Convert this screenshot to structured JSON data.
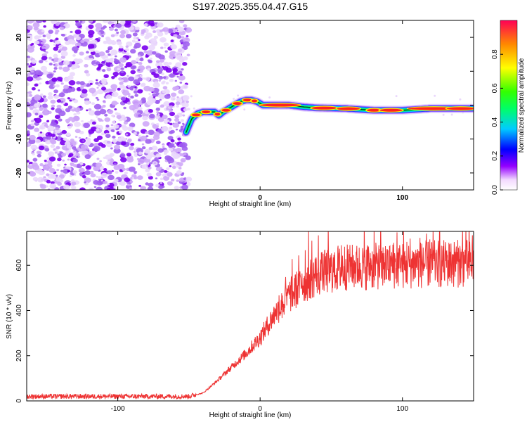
{
  "title": "S197.2025.355.04.47.G15",
  "colors": {
    "snr_line": "#ee3333",
    "axis": "#000000",
    "noise": "#8a2be2"
  },
  "chart_data": [
    {
      "type": "heatmap",
      "name": "spectrogram",
      "xlabel": "Height of straight line (km)",
      "ylabel": "Frequency (Hz)",
      "xlim": [
        -164,
        150
      ],
      "ylim": [
        -25,
        25
      ],
      "x_ticks": [
        -100,
        0,
        100
      ],
      "x_tick_labels": [
        "-100",
        "0",
        "100"
      ],
      "y_ticks": [
        -20,
        -10,
        0,
        10,
        20
      ],
      "y_tick_labels": [
        "-20",
        "-10",
        "0",
        "10",
        "20"
      ],
      "noise_region_x": [
        -164,
        -50
      ],
      "signal_track": [
        {
          "x": -52,
          "y": -8
        },
        {
          "x": -48,
          "y": -4
        },
        {
          "x": -44,
          "y": -2.5
        },
        {
          "x": -40,
          "y": -2
        },
        {
          "x": -36,
          "y": -2
        },
        {
          "x": -32,
          "y": -2
        },
        {
          "x": -29,
          "y": -3
        },
        {
          "x": -26,
          "y": -2
        },
        {
          "x": -22,
          "y": -1
        },
        {
          "x": -18,
          "y": 0
        },
        {
          "x": -14,
          "y": 1
        },
        {
          "x": -10,
          "y": 1.5
        },
        {
          "x": -6,
          "y": 1.5
        },
        {
          "x": -2,
          "y": 1
        },
        {
          "x": 2,
          "y": 0
        },
        {
          "x": 10,
          "y": 0
        },
        {
          "x": 20,
          "y": 0
        },
        {
          "x": 30,
          "y": -0.5
        },
        {
          "x": 40,
          "y": -0.8
        },
        {
          "x": 60,
          "y": -1
        },
        {
          "x": 80,
          "y": -1.5
        },
        {
          "x": 100,
          "y": -1.5
        },
        {
          "x": 120,
          "y": -1
        },
        {
          "x": 150,
          "y": -1
        }
      ],
      "colorbar": {
        "label": "Normalized spectral amplitude",
        "range": [
          0,
          1
        ],
        "ticks": [
          0.0,
          0.2,
          0.4,
          0.6,
          0.8
        ],
        "tick_labels": [
          "0.0",
          "0.2",
          "0.4",
          "0.6",
          "0.8"
        ]
      }
    },
    {
      "type": "line",
      "name": "snr",
      "xlabel": "Height of straight line (km)",
      "ylabel": "SNR (10 * v/v)",
      "xlim": [
        -164,
        150
      ],
      "ylim": [
        0,
        750
      ],
      "x_ticks": [
        -100,
        0,
        100
      ],
      "x_tick_labels": [
        "-100",
        "0",
        "100"
      ],
      "y_ticks": [
        0,
        200,
        400,
        600
      ],
      "y_tick_labels": [
        "0",
        "200",
        "400",
        "600"
      ],
      "series": [
        {
          "name": "SNR",
          "x": [
            -164,
            -120,
            -80,
            -50,
            -40,
            -30,
            -20,
            -10,
            0,
            10,
            20,
            30,
            40,
            60,
            80,
            100,
            120,
            150
          ],
          "values": [
            20,
            20,
            20,
            20,
            35,
            90,
            150,
            210,
            280,
            380,
            460,
            520,
            560,
            590,
            595,
            600,
            605,
            610
          ]
        }
      ]
    }
  ]
}
